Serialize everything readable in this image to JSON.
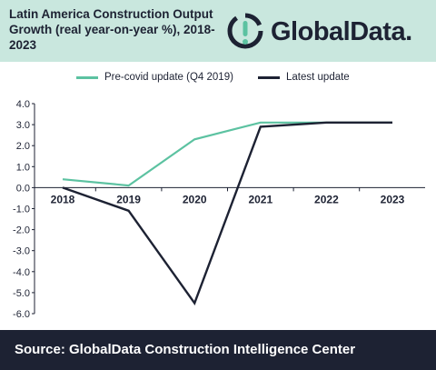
{
  "header": {
    "title": "Latin America Construction Output Growth (real year-on-year %), 2018-2023",
    "logo_text": "GlobalData."
  },
  "footer": {
    "source": "Source: GlobalData Construction Intelligence Center"
  },
  "colors": {
    "header_bg": "#c9e7de",
    "pre_covid": "#5cc2a1",
    "latest": "#1d2233",
    "footer_bg": "#1d2233"
  },
  "chart_data": {
    "type": "line",
    "title": "Latin America Construction Output Growth (real year-on-year %), 2018-2023",
    "xlabel": "",
    "ylabel": "",
    "categories": [
      "2018",
      "2019",
      "2020",
      "2021",
      "2022",
      "2023"
    ],
    "series": [
      {
        "name": "Pre-covid update (Q4 2019)",
        "color": "#5cc2a1",
        "values": [
          0.4,
          0.1,
          2.3,
          3.1,
          3.1,
          3.1
        ]
      },
      {
        "name": "Latest update",
        "color": "#1d2233",
        "values": [
          0.0,
          -1.1,
          -5.5,
          2.9,
          3.1,
          3.1
        ]
      }
    ],
    "ylim": [
      -6.0,
      4.0
    ],
    "yticks": [
      "4.0",
      "3.0",
      "2.0",
      "1.0",
      "0.0",
      "-1.0",
      "-2.0",
      "-3.0",
      "-4.0",
      "-5.0",
      "-6.0"
    ],
    "grid": false,
    "legend": "top"
  }
}
